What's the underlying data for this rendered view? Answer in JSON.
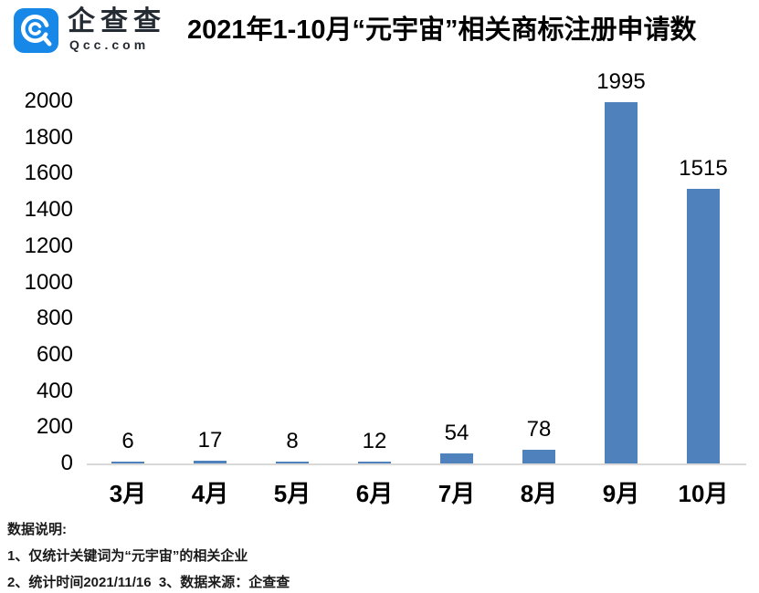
{
  "header": {
    "logo_cn": "企查查",
    "logo_domain": "Qcc.com",
    "logo_color": "#1787e8",
    "title": "2021年1-10月“元宇宙”相关商标注册申请数"
  },
  "chart_data": {
    "type": "bar",
    "title": "2021年1-10月“元宇宙”相关商标注册申请数",
    "categories": [
      "3月",
      "4月",
      "5月",
      "6月",
      "7月",
      "8月",
      "9月",
      "10月"
    ],
    "values": [
      6,
      17,
      8,
      12,
      54,
      78,
      1995,
      1515
    ],
    "value_labels": [
      6,
      17,
      8,
      12,
      54,
      78,
      1995,
      1515
    ],
    "xlabel": "",
    "ylabel": "",
    "ylim": [
      0,
      2000
    ],
    "yticks": [
      0,
      200,
      400,
      600,
      800,
      1000,
      1200,
      1400,
      1600,
      1800,
      2000
    ],
    "grid": false,
    "legend": "none",
    "bar_color": "#4f81bd",
    "axis_line_color": "#d9d9d9"
  },
  "footer": {
    "heading": "数据说明:",
    "note1": "1、仅统计关键词为“元宇宙”的相关企业",
    "note2": "2、统计时间2021/11/16  3、数据来源：企查查"
  }
}
